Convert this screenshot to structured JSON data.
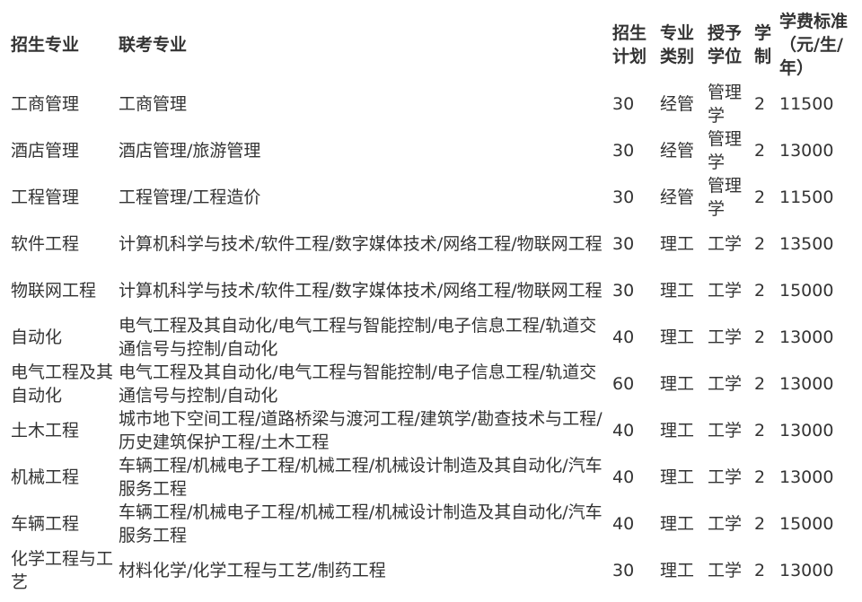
{
  "headers": [
    "招生专业",
    "联考专业",
    "招生计划",
    "专业类别",
    "授予学位",
    "学制",
    "学费标准（元/生/年）"
  ],
  "rows": [
    [
      "工商管理",
      "工商管理",
      "30",
      "经管",
      "管理学",
      "2",
      "11500"
    ],
    [
      "酒店管理",
      "酒店管理/旅游管理",
      "30",
      "经管",
      "管理学",
      "2",
      "13000"
    ],
    [
      "工程管理",
      "工程管理/工程造价",
      "30",
      "经管",
      "管理学",
      "2",
      "11500"
    ],
    [
      "软件工程",
      "计算机科学与技术/软件工程/数字媒体技术/网络工程/物联网工程",
      "30",
      "理工",
      "工学",
      "2",
      "13500"
    ],
    [
      "物联网工程",
      "计算机科学与技术/软件工程/数字媒体技术/网络工程/物联网工程",
      "30",
      "理工",
      "工学",
      "2",
      "15000"
    ],
    [
      "自动化",
      "电气工程及其自动化/电气工程与智能控制/电子信息工程/轨道交通信号与控制/自动化",
      "40",
      "理工",
      "工学",
      "2",
      "13000"
    ],
    [
      "电气工程及其自动化",
      "电气工程及其自动化/电气工程与智能控制/电子信息工程/轨道交通信号与控制/自动化",
      "60",
      "理工",
      "工学",
      "2",
      "13000"
    ],
    [
      "土木工程",
      "城市地下空间工程/道路桥梁与渡河工程/建筑学/勘查技术与工程/历史建筑保护工程/土木工程",
      "40",
      "理工",
      "工学",
      "2",
      "13000"
    ],
    [
      "机械工程",
      "车辆工程/机械电子工程/机械工程/机械设计制造及其自动化/汽车服务工程",
      "40",
      "理工",
      "工学",
      "2",
      "13000"
    ],
    [
      "车辆工程",
      "车辆工程/机械电子工程/机械工程/机械设计制造及其自动化/汽车服务工程",
      "40",
      "理工",
      "工学",
      "2",
      "15000"
    ],
    [
      "化学工程与工艺",
      "材料化学/化学工程与工艺/制药工程",
      "30",
      "理工",
      "工学",
      "2",
      "13000"
    ]
  ]
}
